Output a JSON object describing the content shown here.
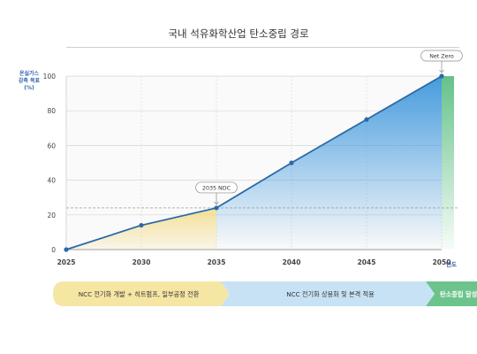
{
  "page": {
    "title": "국내 석유화학산업 탄소중립 경로",
    "ylabel_lines": [
      "온실가스",
      "감축 목표",
      "(%)"
    ],
    "xunit": "연도"
  },
  "chart_data": {
    "type": "line",
    "title": "국내 석유화학산업 탄소중립 경로",
    "xlabel": "연도",
    "ylabel": "온실가스 감축 목표 (%)",
    "x": [
      2025,
      2030,
      2035,
      2040,
      2045,
      2050
    ],
    "y": [
      0,
      14,
      24,
      50,
      75,
      100
    ],
    "xlim": [
      2025,
      2050
    ],
    "ylim": [
      0,
      100
    ],
    "yticks": [
      0,
      20,
      40,
      60,
      80,
      100
    ],
    "xticks": [
      "2025",
      "2030",
      "2035",
      "2040",
      "2045",
      "2050"
    ],
    "grid": true,
    "reference_line_y": 24,
    "annotations": [
      {
        "x": 2035,
        "y": 24,
        "text": "2035 NDC"
      },
      {
        "x": 2050,
        "y": 100,
        "text": "Net Zero"
      }
    ],
    "colors": {
      "line": "#2a6aa8",
      "fill_phase1": "#f3dc8a",
      "fill_phase2": "#5aa8e0",
      "fill_phase3": "#7cc79a",
      "grid": "#d6d6d6",
      "axis_text": "#444444"
    }
  },
  "phases": [
    {
      "label": "NCC 전기화 개발 + 히트펌프, 일부공정 전환",
      "color": "#f6e6a4"
    },
    {
      "label": "NCC 전기화 상용화 및 본격 적용",
      "color": "#c8e2f5"
    },
    {
      "label": "탄소중립 달성",
      "color": "#6cc48c"
    }
  ]
}
